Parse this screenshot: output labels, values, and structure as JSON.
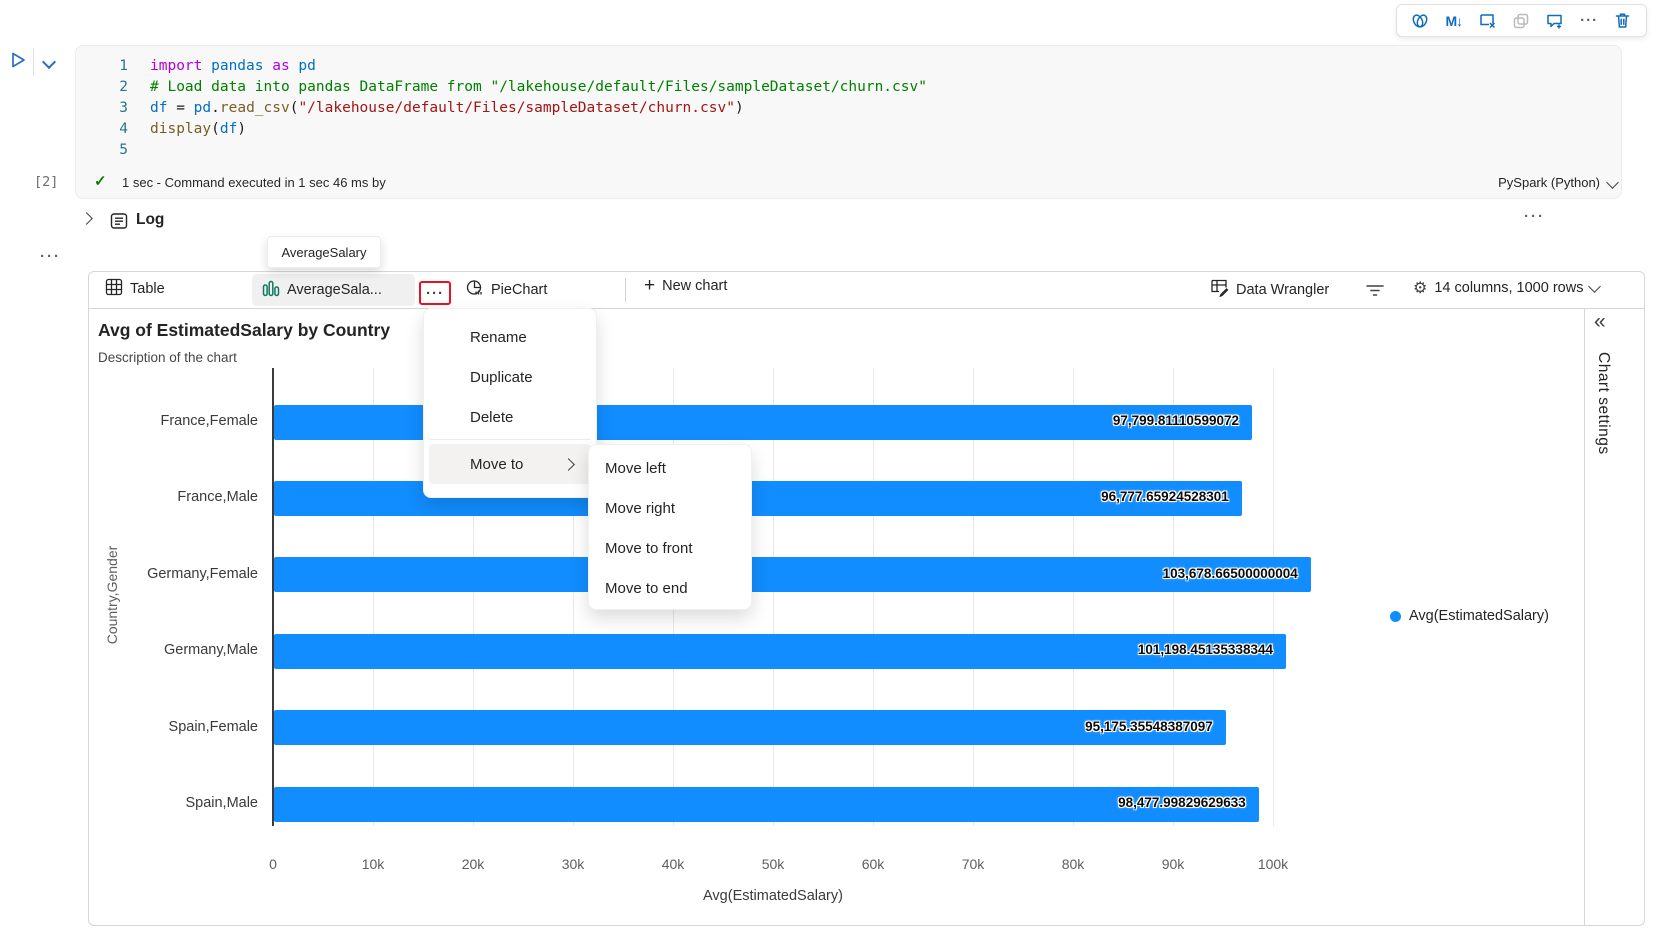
{
  "glyphs": {
    "ellipsis": "···",
    "plus": "+",
    "collapse_chevrons": "«",
    "check": "✓",
    "markdown_icon": "M↓",
    "gear": "⚙"
  },
  "cell": {
    "execution_count": "[2]",
    "status_text": "1 sec - Command executed in 1 sec 46 ms by",
    "kernel_label": "PySpark (Python)",
    "code_lines": [
      {
        "n": "1",
        "tokens": [
          [
            "kw",
            "import "
          ],
          [
            "id",
            "pandas "
          ],
          [
            "kw",
            "as "
          ],
          [
            "id",
            "pd"
          ]
        ]
      },
      {
        "n": "2",
        "tokens": [
          [
            "cm",
            "# Load data into pandas DataFrame from \"/lakehouse/default/Files/sampleDataset/churn.csv\""
          ]
        ]
      },
      {
        "n": "3",
        "tokens": [
          [
            "id",
            "df "
          ],
          [
            "pl",
            "= "
          ],
          [
            "id",
            "pd"
          ],
          [
            "pl",
            "."
          ],
          [
            "fn",
            "read_csv"
          ],
          [
            "pl",
            "("
          ],
          [
            "str",
            "\"/lakehouse/default/Files/sampleDataset/churn.csv\""
          ],
          [
            "pl",
            ")"
          ]
        ]
      },
      {
        "n": "4",
        "tokens": [
          [
            "fn",
            "display"
          ],
          [
            "pl",
            "("
          ],
          [
            "id",
            "df"
          ],
          [
            "pl",
            ")"
          ]
        ]
      },
      {
        "n": "5",
        "tokens": []
      }
    ]
  },
  "log_section": {
    "label": "Log"
  },
  "tab_tooltip": "AverageSalary",
  "tabs": {
    "table": "Table",
    "average_salary": "AverageSala...",
    "pie": "PieChart",
    "new_chart": "New chart"
  },
  "toolbar_right": {
    "data_wrangler": "Data Wrangler",
    "dimensions": "14 columns, 1000 rows"
  },
  "context_menu": {
    "items": [
      "Rename",
      "Duplicate",
      "Delete"
    ],
    "move_to": "Move to",
    "submenu": [
      "Move left",
      "Move right",
      "Move to front",
      "Move to end"
    ]
  },
  "chart_settings_panel": {
    "label": "Chart settings"
  },
  "chart_data": {
    "type": "bar",
    "orientation": "horizontal",
    "title": "Avg of EstimatedSalary by Country",
    "subtitle": "Description of the chart",
    "categories": [
      "France,Female",
      "France,Male",
      "Germany,Female",
      "Germany,Male",
      "Spain,Female",
      "Spain,Male"
    ],
    "values": [
      97799.81110599072,
      96777.65924528301,
      103678.66500000004,
      101198.45135338344,
      95175.35548387097,
      98477.99829629633
    ],
    "value_labels": [
      "97,799.81110599072",
      "96,777.65924528301",
      "103,678.66500000004",
      "101,198.45135338344",
      "95,175.35548387097",
      "98,477.99829629633"
    ],
    "xlabel": "Avg(EstimatedSalary)",
    "ylabel": "Country,Gender",
    "xlim": [
      0,
      100000
    ],
    "xtick_labels": [
      "0",
      "10k",
      "20k",
      "30k",
      "40k",
      "50k",
      "60k",
      "70k",
      "80k",
      "90k",
      "100k"
    ],
    "legend": [
      "Avg(EstimatedSalary)"
    ],
    "bar_color": "#118DFF",
    "grid": true,
    "legend_position": "right"
  }
}
